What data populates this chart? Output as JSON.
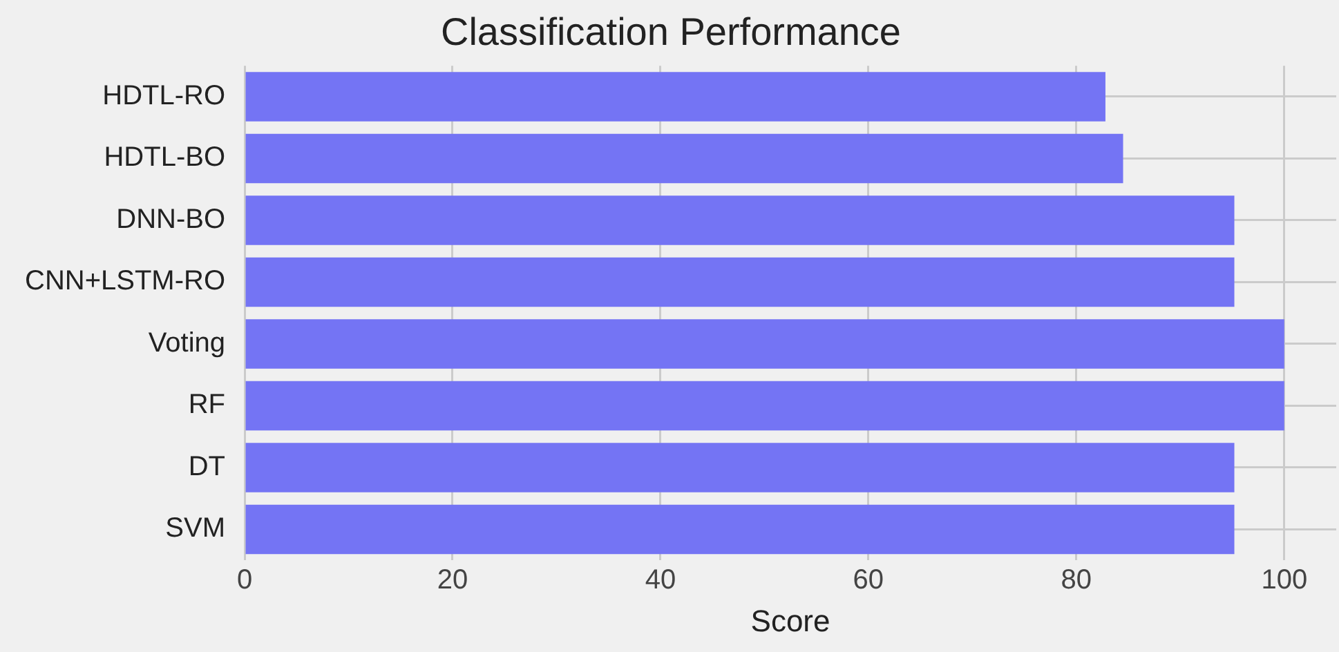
{
  "chart_data": {
    "type": "bar",
    "orientation": "horizontal",
    "title": "Classification Performance",
    "xlabel": "Score",
    "categories": [
      "HDTL-RO",
      "HDTL-BO",
      "DNN-BO",
      "CNN+LSTM-RO",
      "Voting",
      "RF",
      "DT",
      "SVM"
    ],
    "values": [
      82.8,
      84.5,
      95.2,
      95.2,
      100,
      100,
      95.2,
      95.2
    ],
    "color": "#7474f4",
    "xlim": [
      0,
      105
    ],
    "xticks": [
      0,
      20,
      40,
      60,
      80,
      100
    ],
    "grid": true,
    "legend": false
  }
}
